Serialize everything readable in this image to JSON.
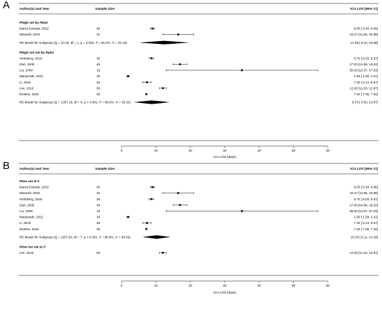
{
  "chart_data": [
    {
      "type": "forest",
      "panel": "A",
      "headers": {
        "study": "Author(s) and Year",
        "n": "Sample Size",
        "est": "ICU LOS [95% CI]"
      },
      "xlabel": "ICU LOS (days)",
      "xlim": [
        0,
        60
      ],
      "xticks": [
        0,
        10,
        20,
        30,
        40,
        50,
        60
      ],
      "subgroups": [
        {
          "title": "Phigh set by Pplat",
          "studies": [
            {
              "name": "Ibarra-Estrada, 2022",
              "n": "45",
              "est": 9.0,
              "lo": 8.34,
              "hi": 9.66,
              "label": "9.00 [ 8.34,  9.66]"
            },
            {
              "name": "Maxwell, 2010",
              "n": "31",
              "est": 16.47,
              "lo": 11.95,
              "hi": 20.98,
              "label": "16.47 [11.95, 20.98]"
            }
          ],
          "summary": {
            "label": "RE Model for Subgroup (Q = 10.29, df = 1, p = 0.001; I² = 90.3%, τ² = 25.19)",
            "est": 12.39,
            "lo": 5.1,
            "hi": 19.68,
            "ci_label": "12.39 [ 5.10, 19.68]"
          }
        },
        {
          "title": "Phigh not set by Pplat",
          "studies": [
            {
              "name": "Hirshberg, 2018",
              "n": "35",
              "est": 8.7,
              "lo": 8.03,
              "hi": 9.37,
              "label": "8.70 [ 8.03,  9.37]"
            },
            {
              "name": "Dart, 2005",
              "n": "46",
              "est": 17.0,
              "lo": 14.98,
              "hi": 19.02,
              "label": "17.00 [14.98, 19.02]"
            },
            {
              "name": "Liu, 2009",
              "n": "19",
              "est": 35.0,
              "lo": 12.97,
              "hi": 57.03,
              "label": "35.00 [12.97, 57.03]"
            },
            {
              "name": "Manjunath, 2021",
              "n": "30",
              "est": 1.9,
              "lo": 1.59,
              "hi": 2.21,
              "label": "1.90 [ 1.59,  2.21]"
            },
            {
              "name": "Li, 2016",
              "n": "26",
              "est": 7.4,
              "lo": 6.13,
              "hi": 8.67,
              "label": "7.40 [ 6.13,  8.67]"
            },
            {
              "name": "Lim, 2016",
              "n": "50",
              "est": 12.0,
              "lo": 11.03,
              "hi": 12.97,
              "label": "12.00 [11.03, 12.97]"
            },
            {
              "name": "Ibrahim, 2022",
              "n": "30",
              "est": 7.2,
              "lo": 7.06,
              "hi": 7.34,
              "label": "7.20 [ 7.06,  7.34]"
            }
          ],
          "summary": {
            "label": "RE Model for Subgroup (Q = 1357.18, df = 6, p < 0.001; I² = 99.8%, τ² = 29.32)",
            "est": 8.79,
            "lo": 3.5,
            "hi": 14.07,
            "ci_label": "8.79 [ 3.50, 14.07]"
          }
        }
      ]
    },
    {
      "type": "forest",
      "panel": "B",
      "headers": {
        "study": "Author(s) and Year",
        "n": "Sample Size",
        "est": "ICU LOS [95% CI]"
      },
      "xlabel": "ICU LOS (days)",
      "xlim": [
        0,
        60
      ],
      "xticks": [
        0,
        10,
        20,
        30,
        40,
        50,
        60
      ],
      "subgroups": [
        {
          "title": "Plow set at 0",
          "studies": [
            {
              "name": "Ibarra-Estrada, 2022",
              "n": "45",
              "est": 9.0,
              "lo": 8.34,
              "hi": 9.66,
              "label": "9.00 [ 8.34,  9.66]"
            },
            {
              "name": "Maxwell, 2010",
              "n": "31",
              "est": 16.47,
              "lo": 11.95,
              "hi": 20.98,
              "label": "16.47 [11.95, 20.98]"
            },
            {
              "name": "Hirshberg, 2018",
              "n": "35",
              "est": 8.7,
              "lo": 8.03,
              "hi": 9.37,
              "label": "8.70 [ 8.03,  9.37]"
            },
            {
              "name": "Dart, 2005",
              "n": "46",
              "est": 17.0,
              "lo": 14.98,
              "hi": 19.02,
              "label": "17.00 [14.98, 19.02]"
            },
            {
              "name": "Liu, 2009",
              "n": "19",
              "est": 35.0,
              "lo": 12.97,
              "hi": 57.03,
              "label": "35.00 [12.97, 57.03]"
            },
            {
              "name": "Manjunath, 2021",
              "n": "30",
              "est": 1.9,
              "lo": 1.59,
              "hi": 2.21,
              "label": "1.90 [ 1.59,  2.21]"
            },
            {
              "name": "Li, 2016",
              "n": "26",
              "est": 7.4,
              "lo": 6.13,
              "hi": 8.67,
              "label": "7.40 [ 6.13,  8.67]"
            },
            {
              "name": "Ibrahim, 2022",
              "n": "30",
              "est": 7.2,
              "lo": 7.06,
              "hi": 7.34,
              "label": "7.20 [ 7.06,  7.34]"
            }
          ],
          "summary": {
            "label": "RE Model for Subgroup (Q = 1157.94, df = 7, p < 0.001; I² = 99.8%, τ² = 30.46)",
            "est": 10.2,
            "lo": 6.11,
            "hi": 14.29,
            "ci_label": "10.20 [ 6.11, 14.29]"
          }
        },
        {
          "title": "Plow not set at 0",
          "studies": [
            {
              "name": "Lim, 2016",
              "n": "50",
              "est": 12.0,
              "lo": 11.03,
              "hi": 12.97,
              "label": "12.00 [11.03, 12.97]"
            }
          ],
          "summary": null
        }
      ]
    }
  ]
}
